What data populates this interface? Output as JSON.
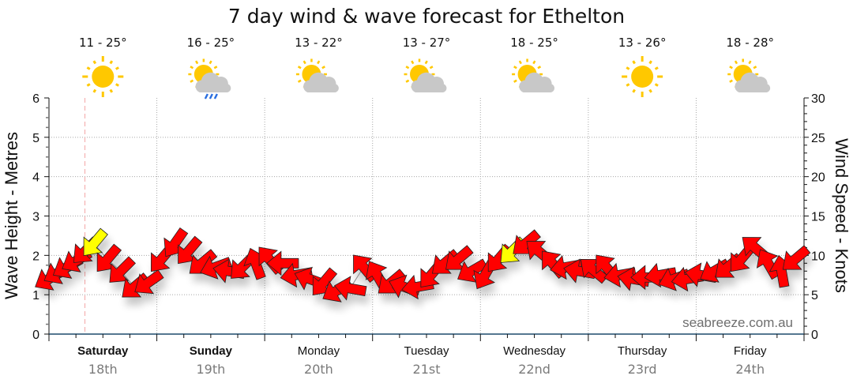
{
  "chart_data": {
    "type": "scatter",
    "title": "7 day wind & wave forecast for Ethelton",
    "ylabel_left": "Wave Height - Metres",
    "ylabel_right": "Wind Speed - Knots",
    "ylim_left": [
      0,
      6
    ],
    "ylim_right": [
      0,
      30
    ],
    "yticks_left": [
      "0",
      "1",
      "2",
      "3",
      "4",
      "5",
      "6"
    ],
    "yticks_right": [
      "0",
      "5",
      "10",
      "15",
      "20",
      "25",
      "30"
    ],
    "grid": true,
    "watermark": "seabreeze.com.au",
    "now_marker_hours": 8,
    "days": [
      {
        "name": "Saturday",
        "date": "18th",
        "bold": true,
        "temp": "11 - 25°",
        "icon": "sunny-icon"
      },
      {
        "name": "Sunday",
        "date": "19th",
        "bold": true,
        "temp": "16 - 25°",
        "icon": "partly-cloudy-rain-icon"
      },
      {
        "name": "Monday",
        "date": "20th",
        "bold": false,
        "temp": "13 - 22°",
        "icon": "partly-cloudy-icon"
      },
      {
        "name": "Tuesday",
        "date": "21st",
        "bold": false,
        "temp": "13 - 27°",
        "icon": "partly-cloudy-icon"
      },
      {
        "name": "Wednesday",
        "date": "22nd",
        "bold": false,
        "temp": "18 - 25°",
        "icon": "partly-cloudy-icon"
      },
      {
        "name": "Thursday",
        "date": "23rd",
        "bold": false,
        "temp": "13 - 26°",
        "icon": "sunny-icon"
      },
      {
        "name": "Friday",
        "date": "24th",
        "bold": false,
        "temp": "18 - 28°",
        "icon": "partly-cloudy-icon"
      }
    ],
    "wind_series": {
      "name": "Wind",
      "units": "knots",
      "x_hours": [
        0,
        2,
        4,
        6,
        8,
        10,
        13,
        16,
        19,
        22,
        25,
        28,
        31,
        34,
        37,
        40,
        43,
        46,
        49,
        52,
        55,
        58,
        61,
        64,
        67,
        70,
        73,
        76,
        79,
        82,
        85,
        88,
        91,
        94,
        97,
        100,
        103,
        106,
        109,
        112,
        115,
        118,
        121,
        124,
        127,
        130,
        133,
        136,
        139,
        142,
        145,
        148,
        151,
        154,
        157,
        160,
        163,
        166
      ],
      "speed": [
        7,
        7.8,
        8.5,
        9.3,
        10.5,
        11.5,
        9.5,
        8,
        6,
        6.5,
        9.5,
        11.5,
        10.5,
        9,
        8.5,
        8,
        8.5,
        9,
        9.5,
        9,
        7.5,
        7,
        6.5,
        5.5,
        5.8,
        8.5,
        7.5,
        6.5,
        6,
        6,
        7.5,
        9,
        9.5,
        8,
        7.5,
        9.5,
        10.5,
        11.5,
        10.5,
        9,
        8.5,
        8,
        8.2,
        8.5,
        7.5,
        7,
        7.2,
        7.5,
        7,
        7,
        7.5,
        8,
        8.5,
        9.5,
        11,
        9,
        8,
        9.5
      ],
      "direction_deg": [
        60,
        60,
        60,
        60,
        45,
        40,
        40,
        45,
        50,
        55,
        40,
        35,
        40,
        50,
        70,
        100,
        45,
        160,
        140,
        90,
        80,
        110,
        40,
        60,
        100,
        140,
        150,
        50,
        110,
        80,
        40,
        50,
        50,
        60,
        30,
        40,
        45,
        50,
        130,
        140,
        80,
        100,
        130,
        140,
        80,
        100,
        90,
        80,
        70,
        80,
        100,
        60,
        50,
        40,
        130,
        150,
        170,
        50
      ],
      "highlight": [
        false,
        false,
        false,
        false,
        false,
        true,
        false,
        false,
        false,
        false,
        false,
        false,
        false,
        false,
        false,
        false,
        false,
        false,
        false,
        false,
        false,
        false,
        false,
        false,
        false,
        false,
        false,
        false,
        false,
        false,
        false,
        false,
        false,
        false,
        false,
        false,
        true,
        false,
        false,
        false,
        false,
        false,
        false,
        false,
        false,
        false,
        false,
        false,
        false,
        false,
        false,
        false,
        false,
        false,
        false,
        false,
        false,
        false
      ],
      "colors": {
        "normal": "#ff0000",
        "highlight": "#ffff00"
      }
    }
  }
}
